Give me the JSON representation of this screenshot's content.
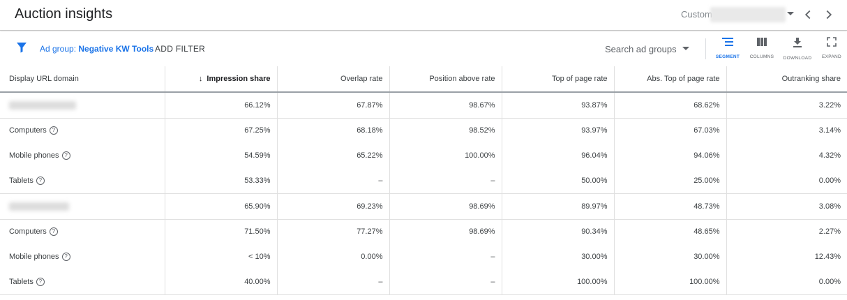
{
  "header": {
    "title": "Auction insights",
    "date_range_label": "Custom"
  },
  "filter_bar": {
    "filter_prefix": "Ad group: ",
    "filter_value": "Negative KW Tools",
    "add_filter": "ADD FILTER",
    "search_placeholder": "Search ad groups",
    "tools": {
      "segment": "SEGMENT",
      "columns": "COLUMNS",
      "download": "DOWNLOAD",
      "expand": "EXPAND"
    }
  },
  "table": {
    "headers": [
      "Display URL domain",
      "Impression share",
      "Overlap rate",
      "Position above rate",
      "Top of page rate",
      "Abs. Top of page rate",
      "Outranking share"
    ],
    "sort_arrow": "↓",
    "help_glyph": "?",
    "groups": [
      {
        "domain_values": [
          "66.12%",
          "67.87%",
          "98.67%",
          "93.87%",
          "68.62%",
          "3.22%"
        ],
        "segments": [
          {
            "label": "Computers",
            "values": [
              "67.25%",
              "68.18%",
              "98.52%",
              "93.97%",
              "67.03%",
              "3.14%"
            ]
          },
          {
            "label": "Mobile phones",
            "values": [
              "54.59%",
              "65.22%",
              "100.00%",
              "96.04%",
              "94.06%",
              "4.32%"
            ]
          },
          {
            "label": "Tablets",
            "values": [
              "53.33%",
              "–",
              "–",
              "50.00%",
              "25.00%",
              "0.00%"
            ]
          }
        ]
      },
      {
        "domain_values": [
          "65.90%",
          "69.23%",
          "98.69%",
          "89.97%",
          "48.73%",
          "3.08%"
        ],
        "segments": [
          {
            "label": "Computers",
            "values": [
              "71.50%",
              "77.27%",
              "98.69%",
              "90.34%",
              "48.65%",
              "2.27%"
            ]
          },
          {
            "label": "Mobile phones",
            "values": [
              "< 10%",
              "0.00%",
              "–",
              "30.00%",
              "30.00%",
              "12.43%"
            ]
          },
          {
            "label": "Tablets",
            "values": [
              "40.00%",
              "–",
              "–",
              "100.00%",
              "100.00%",
              "0.00%"
            ]
          }
        ]
      }
    ]
  },
  "colors": {
    "accent": "#1a73e8",
    "text": "#202124",
    "muted": "#5f6368"
  }
}
